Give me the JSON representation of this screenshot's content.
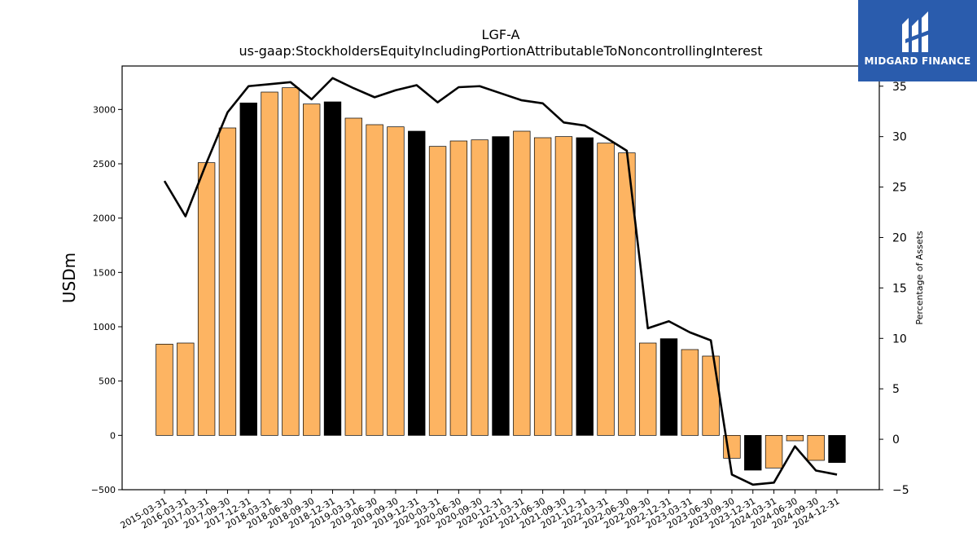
{
  "chart_data": {
    "type": "bar",
    "title": "LGF-A",
    "subtitle": "us-gaap:StockholdersEquityIncludingPortionAttributableToNoncontrollingInterest",
    "ylabel": "USDm",
    "y2label": "Percentage of Assets",
    "ylim": [
      -500,
      3400
    ],
    "y2lim": [
      -5,
      37
    ],
    "yticks": [
      -500,
      0,
      500,
      1000,
      1500,
      2000,
      2500,
      3000
    ],
    "y2ticks": [
      -5,
      0,
      5,
      10,
      15,
      20,
      25,
      30,
      35
    ],
    "categories": [
      "2015-03-31",
      "2016-03-31",
      "2017-03-31",
      "2017-09-30",
      "2017-12-31",
      "2018-03-31",
      "2018-06-30",
      "2018-09-30",
      "2018-12-31",
      "2019-03-31",
      "2019-06-30",
      "2019-09-30",
      "2019-12-31",
      "2020-03-31",
      "2020-06-30",
      "2020-09-30",
      "2020-12-31",
      "2021-03-31",
      "2021-06-30",
      "2021-09-30",
      "2021-12-31",
      "2022-03-31",
      "2022-06-30",
      "2022-09-30",
      "2022-12-31",
      "2023-03-31",
      "2023-06-30",
      "2023-09-30",
      "2023-12-31",
      "2024-03-31",
      "2024-06-30",
      "2024-09-30",
      "2024-12-31"
    ],
    "series": [
      {
        "type": "bar",
        "values": [
          840,
          850,
          2510,
          2830,
          3060,
          3160,
          3200,
          3050,
          3070,
          2920,
          2860,
          2840,
          2800,
          2660,
          2710,
          2720,
          2750,
          2800,
          2740,
          2750,
          2740,
          2690,
          2600,
          850,
          890,
          790,
          730,
          -210,
          -320,
          -300,
          -50,
          -230,
          -250
        ],
        "highlight": [
          false,
          false,
          false,
          false,
          true,
          false,
          false,
          false,
          true,
          false,
          false,
          false,
          true,
          false,
          false,
          false,
          true,
          false,
          false,
          false,
          true,
          false,
          false,
          false,
          true,
          false,
          false,
          false,
          true,
          false,
          false,
          false,
          true
        ],
        "color": "#fdb462",
        "highlight_color": "#000000"
      },
      {
        "type": "line",
        "axis": "right",
        "values": [
          25.6,
          22.1,
          27.4,
          32.4,
          35.0,
          35.2,
          35.4,
          33.7,
          35.8,
          34.8,
          33.9,
          34.6,
          35.1,
          33.4,
          34.9,
          35.0,
          34.3,
          33.6,
          33.3,
          31.4,
          31.1,
          29.9,
          28.6,
          11.0,
          11.7,
          10.6,
          9.8,
          -3.5,
          -4.5,
          -4.3,
          -0.7,
          -3.1,
          -3.5
        ],
        "color": "#000000"
      }
    ]
  },
  "logo": {
    "text": "MIDGARD FINANCE"
  }
}
